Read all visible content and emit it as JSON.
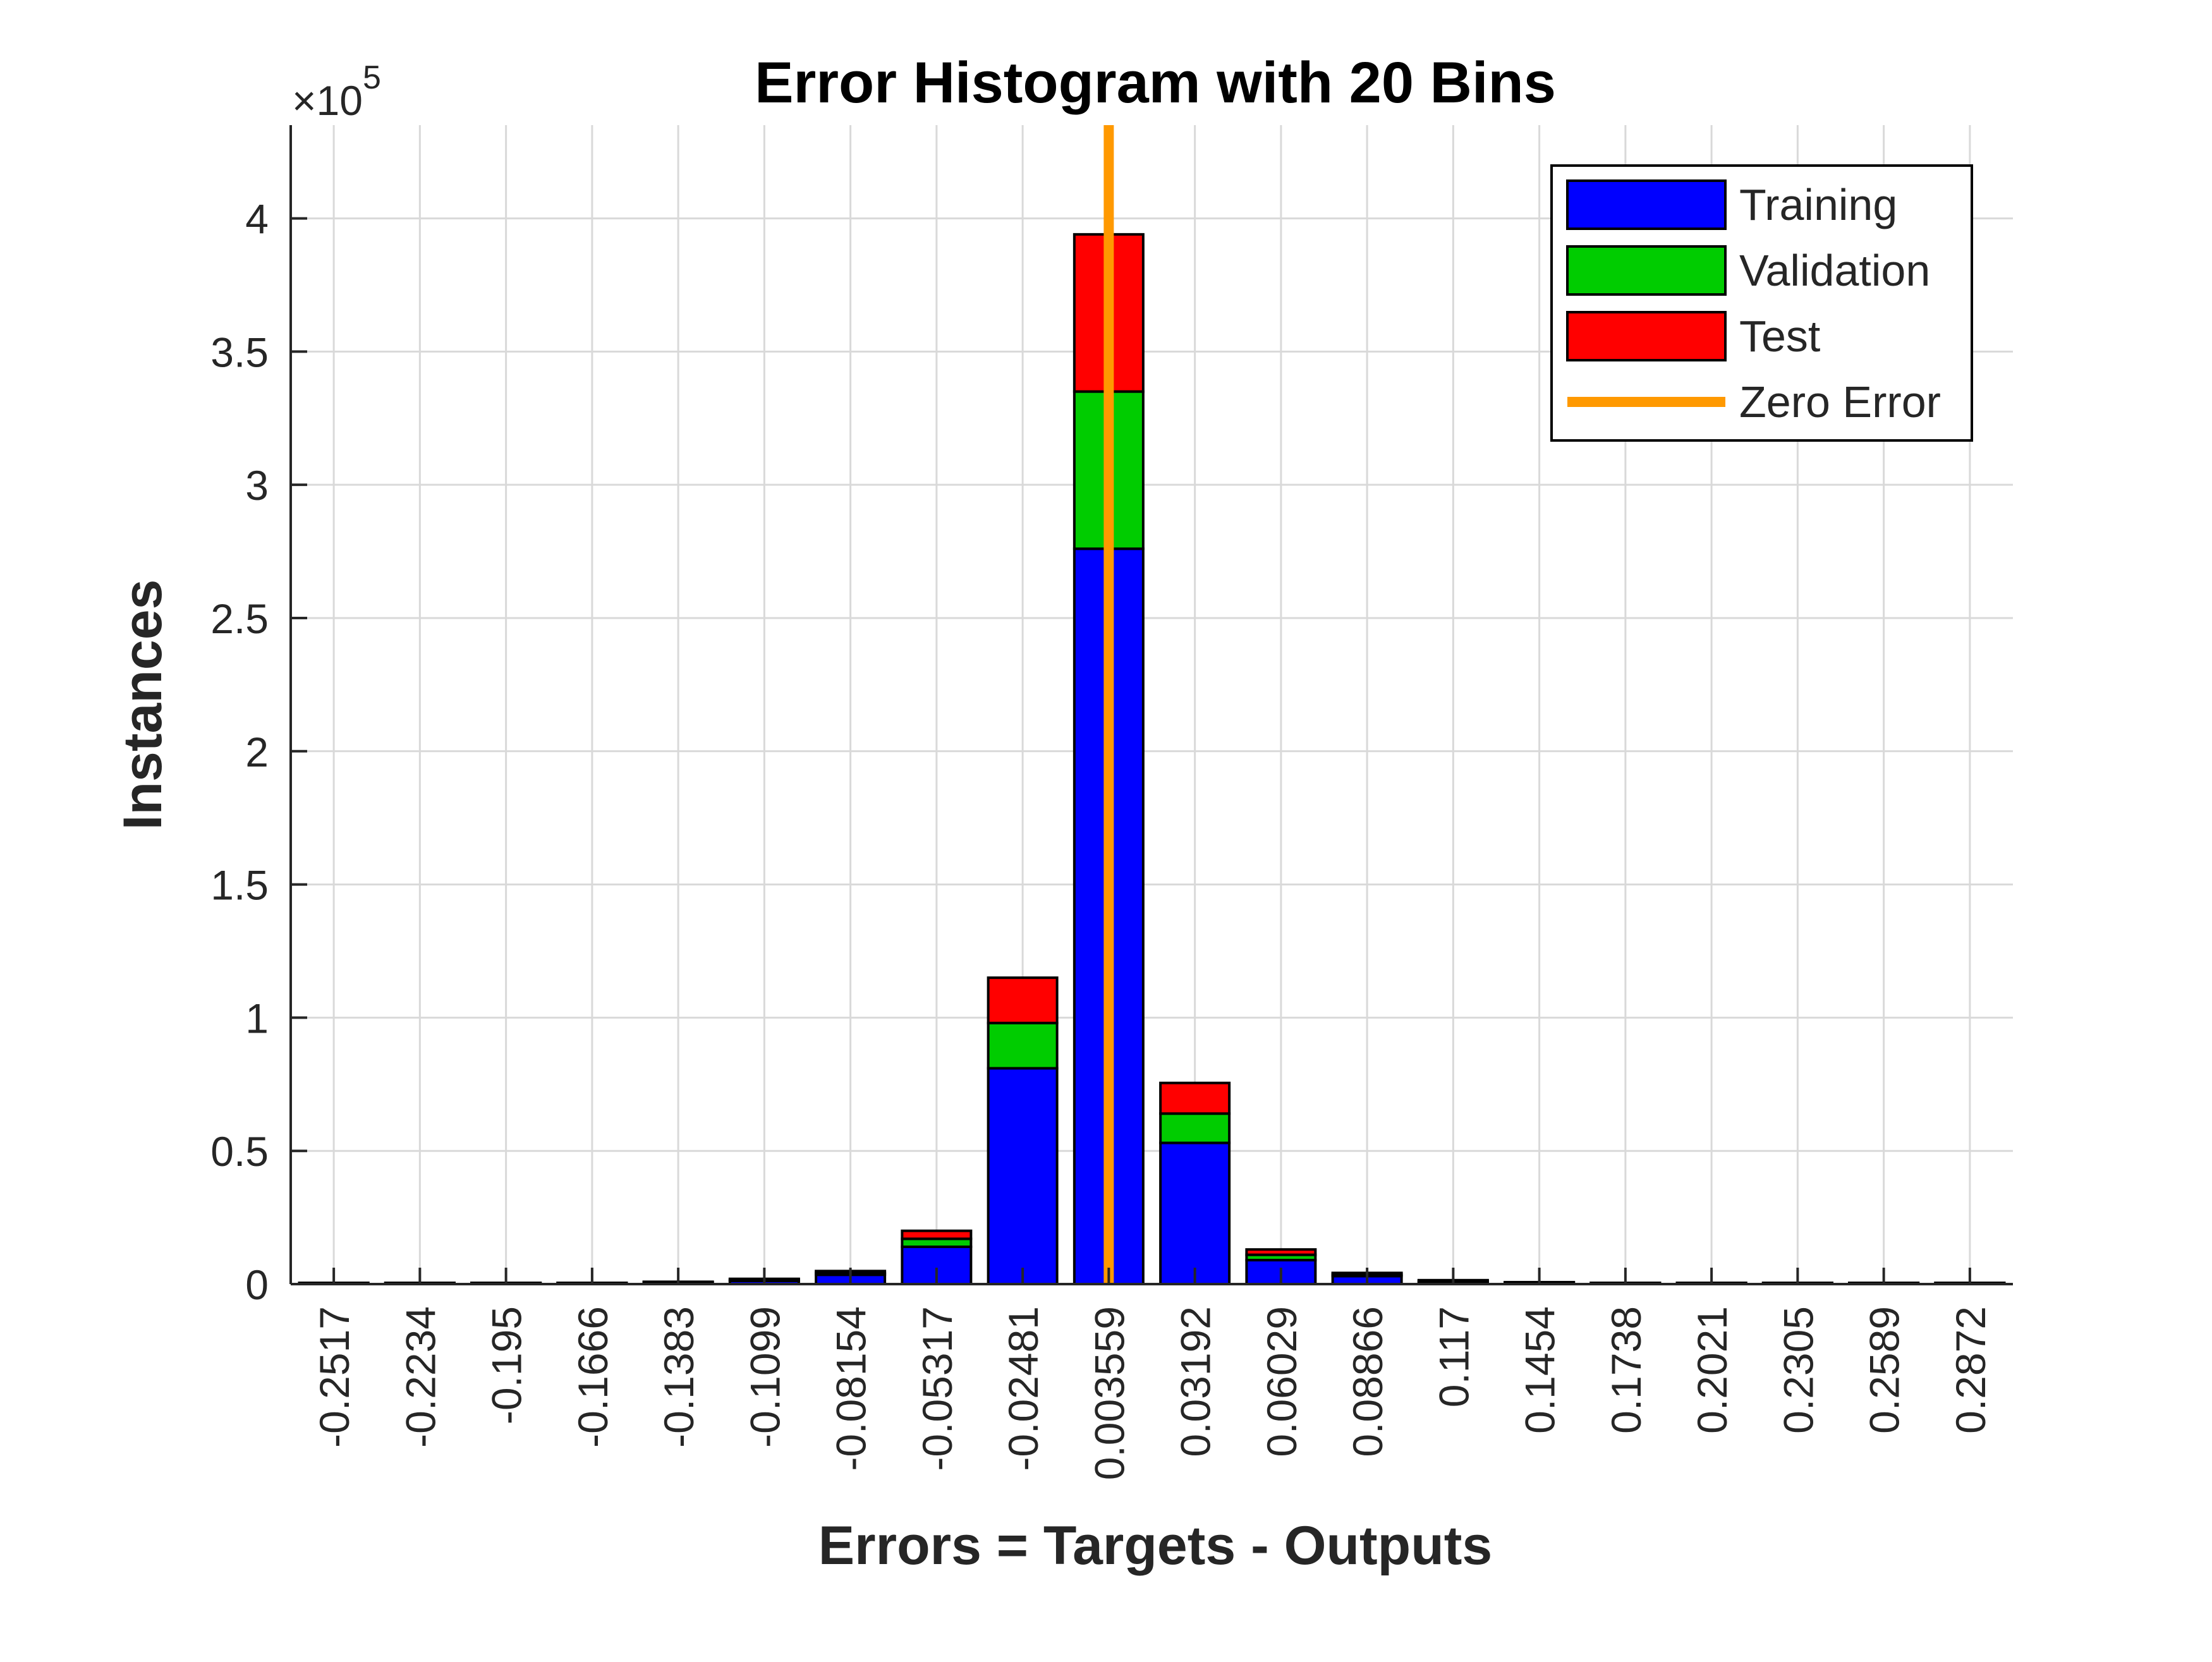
{
  "chart_data": {
    "type": "bar",
    "stacked": true,
    "title": "Error Histogram with 20 Bins",
    "xlabel": "Errors = Targets - Outputs",
    "ylabel": "Instances",
    "y_exponent_label": "×10",
    "y_exponent_power": "5",
    "ylim": [
      0,
      435000
    ],
    "grid": true,
    "legend_position": "top-right",
    "categories": [
      "-0.2517",
      "-0.2234",
      "-0.195",
      "-0.1666",
      "-0.1383",
      "-0.1099",
      "-0.08154",
      "-0.05317",
      "-0.02481",
      "0.003559",
      "0.03192",
      "0.06029",
      "0.08866",
      "0.117",
      "0.1454",
      "0.1738",
      "0.2021",
      "0.2305",
      "0.2589",
      "0.2872"
    ],
    "y_ticks": [
      0,
      50000,
      100000,
      150000,
      200000,
      250000,
      300000,
      350000,
      400000
    ],
    "y_tick_labels": [
      "0",
      "0.5",
      "1",
      "1.5",
      "2",
      "2.5",
      "3",
      "3.5",
      "4"
    ],
    "series": [
      {
        "name": "Training",
        "color": "#0000ff",
        "values": [
          0,
          0,
          0,
          0,
          300,
          1200,
          3500,
          14000,
          81000,
          276000,
          53000,
          9000,
          3000,
          800,
          200,
          0,
          0,
          0,
          0,
          0
        ]
      },
      {
        "name": "Validation",
        "color": "#00cc00",
        "values": [
          0,
          0,
          0,
          0,
          100,
          300,
          700,
          3000,
          17000,
          59000,
          11000,
          2000,
          600,
          200,
          50,
          0,
          0,
          0,
          0,
          0
        ]
      },
      {
        "name": "Test",
        "color": "#ff0000",
        "values": [
          0,
          0,
          0,
          0,
          100,
          300,
          700,
          3000,
          17000,
          59000,
          11500,
          2000,
          600,
          200,
          50,
          0,
          0,
          0,
          0,
          0
        ]
      }
    ],
    "zero_error": {
      "name": "Zero Error",
      "color": "#ff9900",
      "x_category": "0.003559"
    }
  }
}
